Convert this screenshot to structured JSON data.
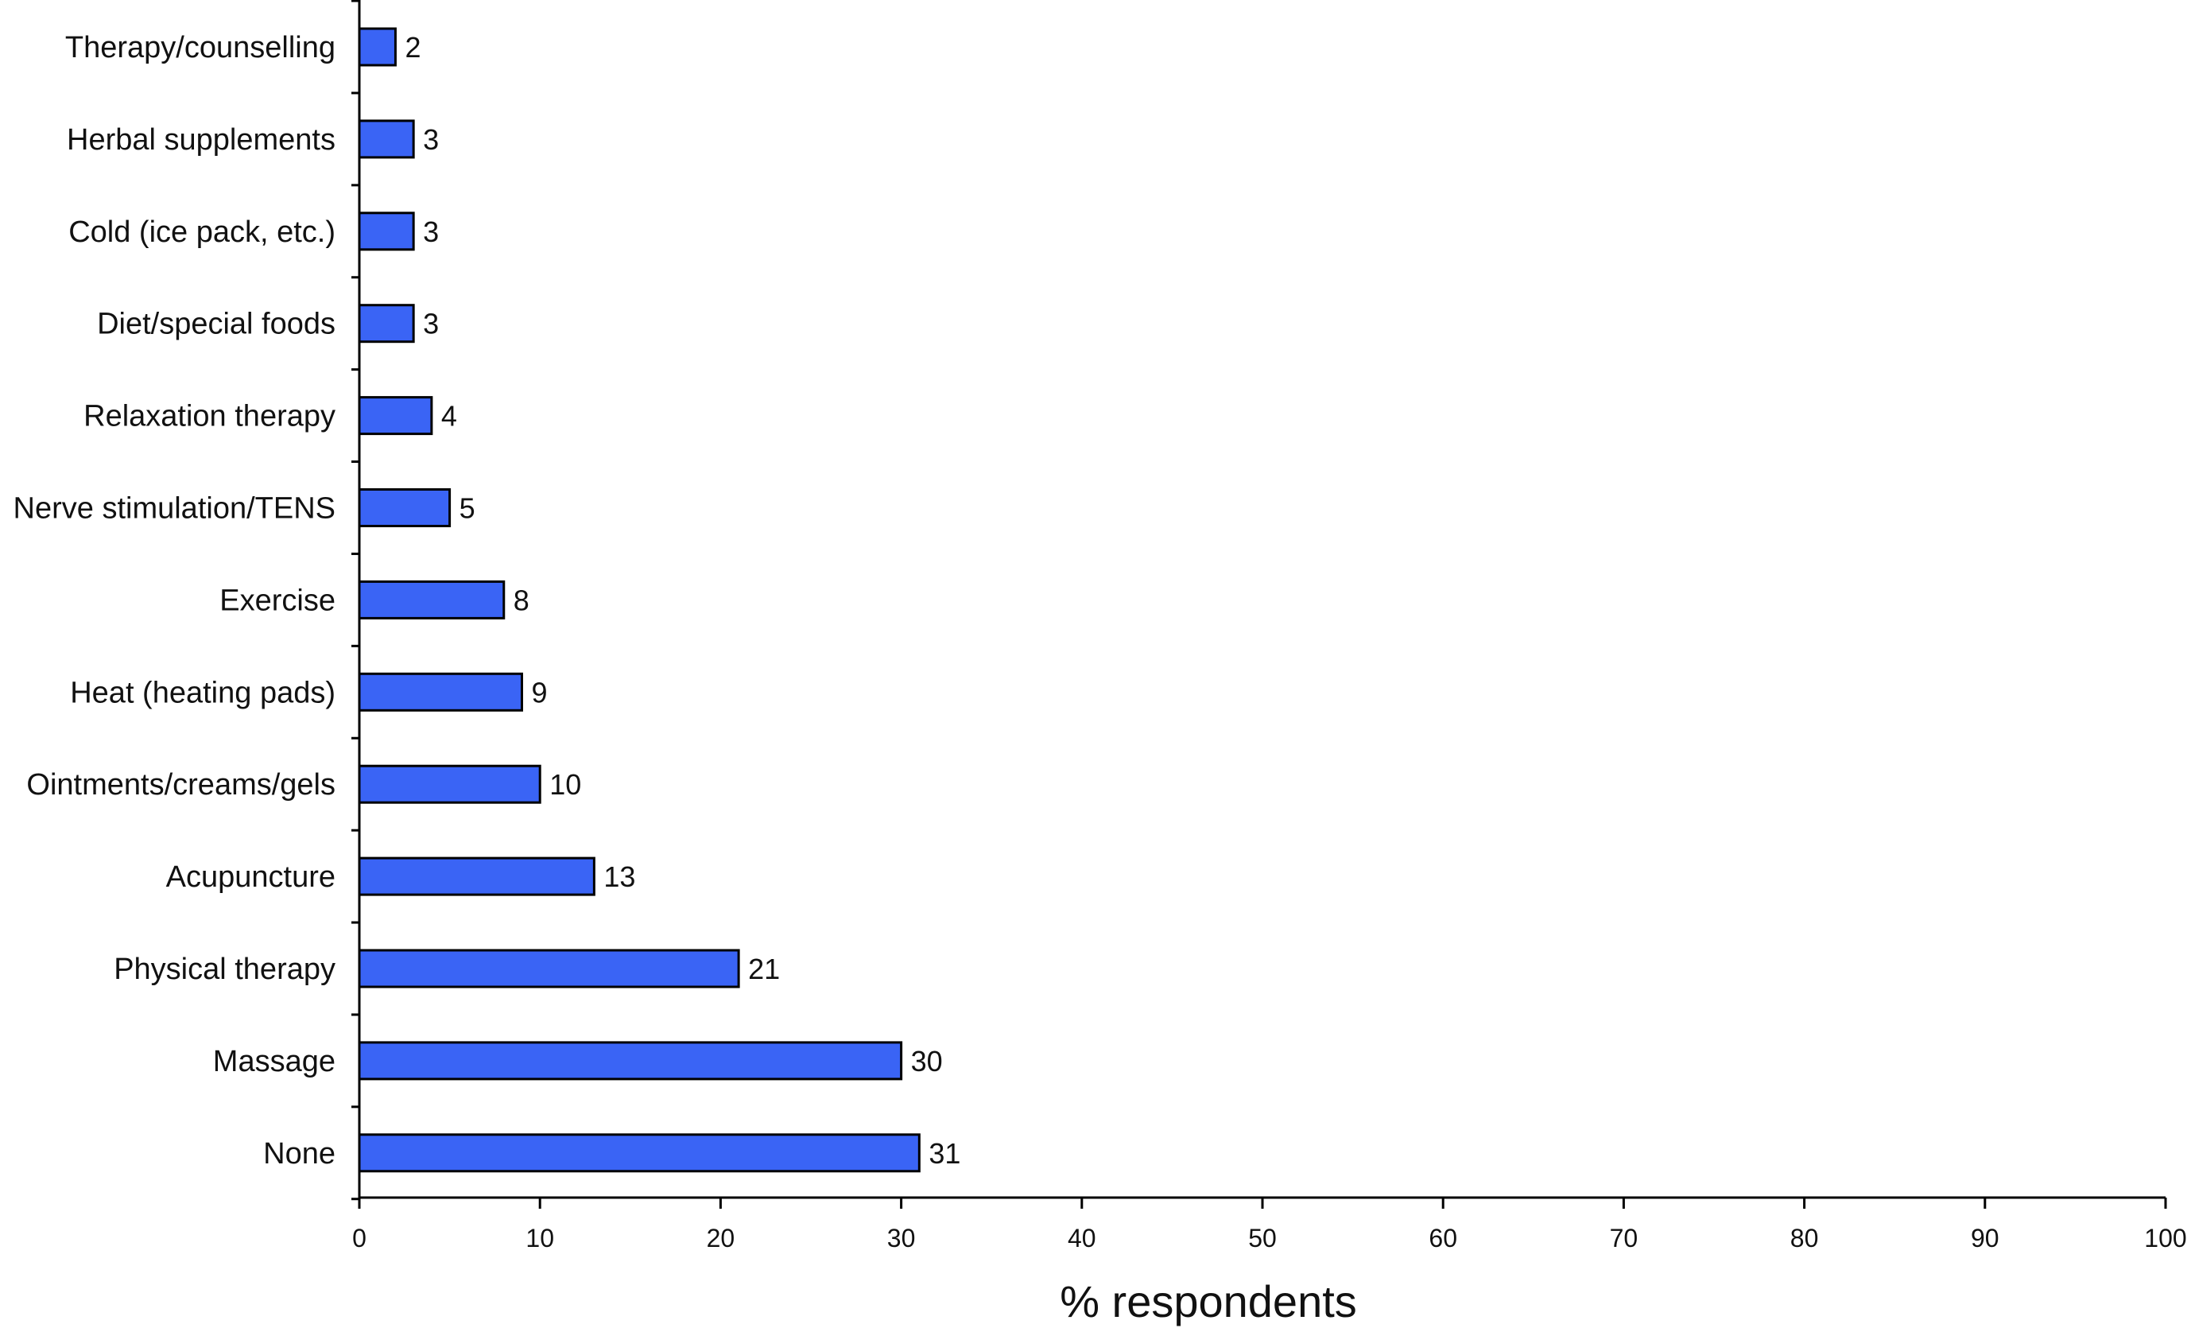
{
  "chart_data": {
    "type": "bar",
    "orientation": "horizontal",
    "categories": [
      "Therapy/counselling",
      "Herbal supplements",
      "Cold (ice pack, etc.)",
      "Diet/special foods",
      "Relaxation therapy",
      "Nerve stimulation/TENS",
      "Exercise",
      "Heat (heating pads)",
      "Ointments/creams/gels",
      "Acupuncture",
      "Physical therapy",
      "Massage",
      "None"
    ],
    "values": [
      2,
      3,
      3,
      3,
      4,
      5,
      8,
      9,
      10,
      13,
      21,
      30,
      31
    ],
    "value_labels": [
      "2",
      "3",
      "3",
      "3",
      "4",
      "5",
      "8",
      "9",
      "10",
      "13",
      "21",
      "30",
      "31"
    ],
    "xlabel": "% respondents",
    "ylabel": "",
    "xlim": [
      0,
      100
    ],
    "xticks": [
      0,
      10,
      20,
      30,
      40,
      50,
      60,
      70,
      80,
      90,
      100
    ],
    "xtick_labels": [
      "0",
      "10",
      "20",
      "30",
      "40",
      "50",
      "60",
      "70",
      "80",
      "90",
      "100"
    ],
    "grid": false,
    "legend": "none",
    "bar_color": "#3a64f5"
  }
}
